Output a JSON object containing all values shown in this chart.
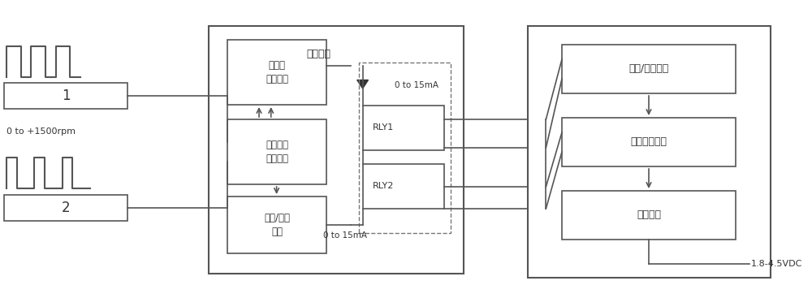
{
  "bg_color": "#ffffff",
  "line_color": "#555555",
  "box_color": "#ffffff",
  "box_edge": "#555555",
  "text_color": "#333333",
  "fig_width": 10.0,
  "fig_height": 3.67,
  "pulse1_label": "1",
  "pulse2_label": "2",
  "rpm_label": "0 to +1500rpm",
  "box_zhengfanzhuan": "正反转\n判断处理",
  "box_xinhaoshuru": "信号输入\n处理模块",
  "box_pinlv": "频率/电流\n转换",
  "label_zhenzhuan": "正转信号",
  "label_0to15_top": "0 to 15mA",
  "label_0to15_bot": "0 to 15mA",
  "box_rly1": "RLY1",
  "box_rly2": "RLY2",
  "box_dianliu": "电流/电压转换",
  "box_dianya": "电压调制放大",
  "box_geli": "隔离输出",
  "label_vdc": "1.8-4.5VDC"
}
